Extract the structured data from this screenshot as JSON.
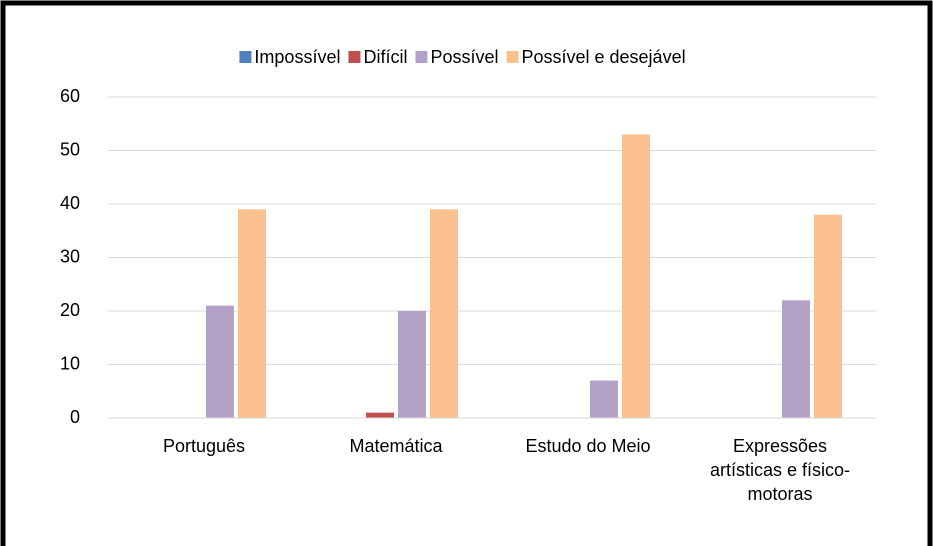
{
  "chart_data": {
    "type": "bar",
    "categories": [
      "Português",
      "Matemática",
      "Estudo do Meio",
      "Expressões artísticas e físico-motoras"
    ],
    "series": [
      {
        "name": "Impossível",
        "color": "#4f81bd",
        "values": [
          0,
          0,
          0,
          0
        ]
      },
      {
        "name": "Difícil",
        "color": "#c0504d",
        "values": [
          0,
          1,
          0,
          0
        ]
      },
      {
        "name": "Possível",
        "color": "#b3a2c7",
        "values": [
          21,
          20,
          7,
          22
        ]
      },
      {
        "name": "Possível e desejável",
        "color": "#fac090",
        "values": [
          39,
          39,
          53,
          38
        ]
      }
    ],
    "ylim": [
      0,
      60
    ],
    "yticks": [
      0,
      10,
      20,
      30,
      40,
      50,
      60
    ],
    "grid": true,
    "legend": "top"
  }
}
